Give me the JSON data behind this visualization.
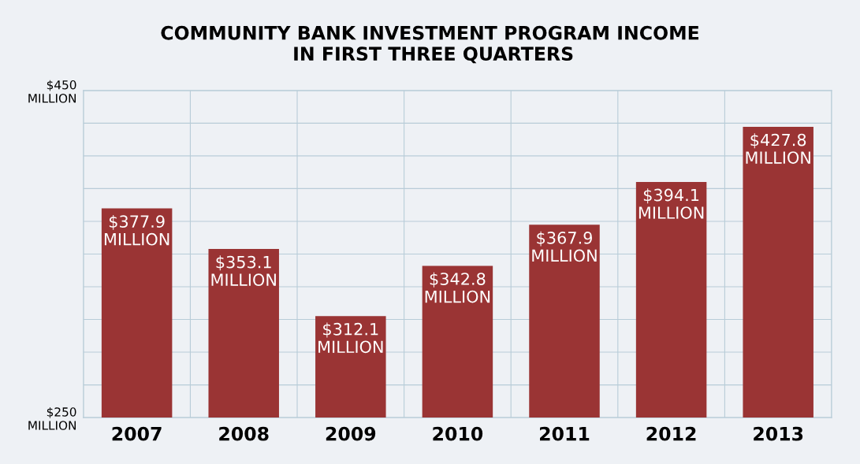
{
  "chart_data": {
    "type": "bar",
    "title": "COMMUNITY BANK INVESTMENT PROGRAM INCOME\n IN FIRST THREE QUARTERS",
    "categories": [
      "2007",
      "2008",
      "2009",
      "2010",
      "2011",
      "2012",
      "2013"
    ],
    "values": [
      377.9,
      353.1,
      312.1,
      342.8,
      367.9,
      394.1,
      427.8
    ],
    "value_labels": [
      "$377.9\nMILLION",
      "$353.1\nMILLION",
      "$312.1\nMILLION",
      "$342.8\nMILLION",
      "$367.9\nMILLION",
      "$394.1\nMILLION",
      "$427.8\nMILLION"
    ],
    "color": "#9a3434",
    "ylim": [
      250,
      450
    ],
    "yticks": [
      {
        "value": 250,
        "label": "$250\nMILLION"
      },
      {
        "value": 270,
        "label": null
      },
      {
        "value": 290,
        "label": null
      },
      {
        "value": 310,
        "label": null
      },
      {
        "value": 330,
        "label": null
      },
      {
        "value": 350,
        "label": null
      },
      {
        "value": 370,
        "label": null
      },
      {
        "value": 390,
        "label": null
      },
      {
        "value": 410,
        "label": null
      },
      {
        "value": 430,
        "label": null
      },
      {
        "value": 450,
        "label": "$450\nMILLION"
      }
    ],
    "grid": true
  }
}
